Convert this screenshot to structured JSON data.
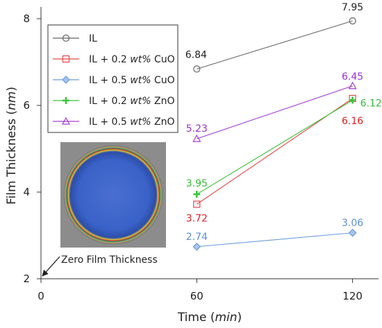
{
  "chart_data": {
    "type": "line",
    "xlabel": "Time",
    "xlabel_unit": "min",
    "ylabel": "Film Thickness",
    "ylabel_unit": "nm",
    "xlim": [
      0,
      130
    ],
    "ylim": [
      2,
      8
    ],
    "xticks": [
      0,
      60,
      120
    ],
    "yticks": [
      2,
      4,
      6,
      8
    ],
    "grid": false,
    "legend_position": "top-left",
    "x": [
      60,
      120
    ],
    "series": [
      {
        "name": "IL",
        "name_parts": [
          "IL",
          "",
          ""
        ],
        "values": [
          6.84,
          7.95
        ],
        "labels": [
          "6.84",
          "7.95"
        ],
        "color": "#666666",
        "label_color": "#222222",
        "marker": "circle"
      },
      {
        "name": "IL + 0.2 wt% CuO",
        "name_parts": [
          "IL + 0.2 ",
          "wt%",
          " CuO"
        ],
        "values": [
          3.72,
          6.16
        ],
        "labels": [
          "3.72",
          "6.16"
        ],
        "color": "#e8474b",
        "label_color": "#e02020",
        "marker": "square"
      },
      {
        "name": "IL + 0.5 wt% CuO",
        "name_parts": [
          "IL + 0.5 ",
          "wt%",
          " CuO"
        ],
        "values": [
          2.74,
          3.06
        ],
        "labels": [
          "2.74",
          "3.06"
        ],
        "color": "#6a9be0",
        "label_color": "#5b8ed8",
        "marker": "diamond"
      },
      {
        "name": "IL + 0.2 wt% ZnO",
        "name_parts": [
          "IL + 0.2 ",
          "wt%",
          " ZnO"
        ],
        "values": [
          3.95,
          6.12
        ],
        "labels": [
          "3.95",
          "6.12"
        ],
        "color": "#3dc43d",
        "label_color": "#33bb33",
        "marker": "plus"
      },
      {
        "name": "IL + 0.5 wt% ZnO",
        "name_parts": [
          "IL + 0.5 ",
          "wt%",
          " ZnO"
        ],
        "values": [
          5.23,
          6.45
        ],
        "labels": [
          "5.23",
          "6.45"
        ],
        "color": "#a23bd6",
        "label_color": "#9a30d0",
        "marker": "triangle"
      }
    ],
    "annotations": [
      {
        "text": "Zero Film Thickness",
        "arrow_to": [
          0,
          2
        ]
      }
    ]
  }
}
